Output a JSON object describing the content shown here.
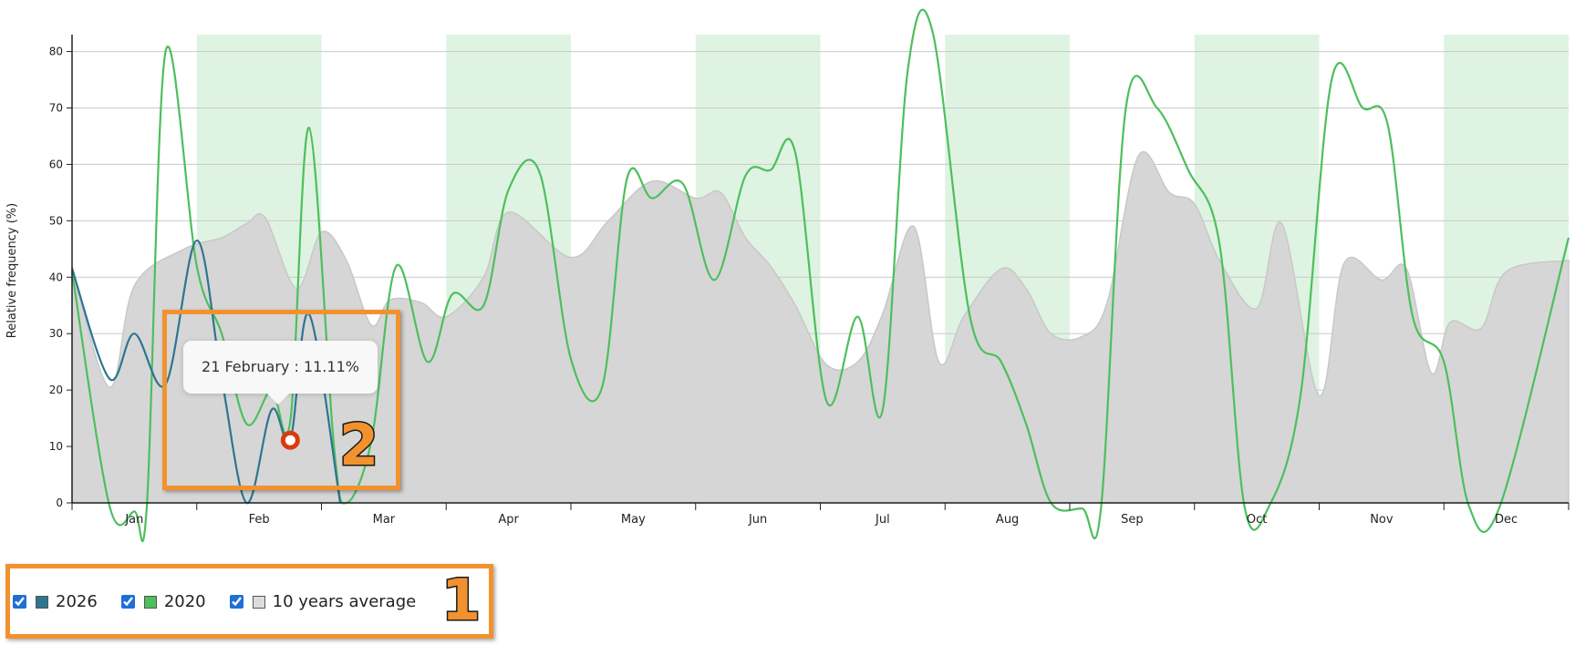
{
  "chart_data": {
    "type": "line",
    "ylabel": "Relative frequency (%)",
    "ylim": [
      0,
      83
    ],
    "yticks": [
      0,
      10,
      20,
      30,
      40,
      50,
      60,
      70,
      80
    ],
    "months": [
      "Jan",
      "Feb",
      "Mar",
      "Apr",
      "May",
      "Jun",
      "Jul",
      "Aug",
      "Sep",
      "Oct",
      "Nov",
      "Dec"
    ],
    "x_domain": [
      0,
      12
    ],
    "grid": "horizontal",
    "shaded_months": [
      "Feb",
      "Apr",
      "Jun",
      "Aug",
      "Oct",
      "Dec"
    ],
    "series": [
      {
        "name": "10 years average",
        "style": "area",
        "color": "#d6d6d6",
        "stroke": "#c8c8c8",
        "points": [
          [
            0.0,
            42
          ],
          [
            0.3,
            20.5
          ],
          [
            0.5,
            38.5
          ],
          [
            0.9,
            45
          ],
          [
            1.2,
            47
          ],
          [
            1.4,
            49.5
          ],
          [
            1.55,
            50.5
          ],
          [
            1.8,
            38
          ],
          [
            2.0,
            48
          ],
          [
            2.2,
            43
          ],
          [
            2.4,
            31.5
          ],
          [
            2.55,
            36
          ],
          [
            2.8,
            35.5
          ],
          [
            3.0,
            33
          ],
          [
            3.3,
            40
          ],
          [
            3.5,
            51.5
          ],
          [
            4.0,
            43.5
          ],
          [
            4.3,
            50
          ],
          [
            4.65,
            57
          ],
          [
            5.0,
            54
          ],
          [
            5.2,
            55
          ],
          [
            5.4,
            47
          ],
          [
            5.6,
            42
          ],
          [
            5.8,
            35
          ],
          [
            6.05,
            24.5
          ],
          [
            6.3,
            25
          ],
          [
            6.5,
            33.5
          ],
          [
            6.75,
            49
          ],
          [
            6.95,
            25
          ],
          [
            7.15,
            33
          ],
          [
            7.45,
            41.5
          ],
          [
            7.65,
            38
          ],
          [
            7.85,
            30
          ],
          [
            8.1,
            29.5
          ],
          [
            8.3,
            35.5
          ],
          [
            8.55,
            61.5
          ],
          [
            8.8,
            55
          ],
          [
            9.0,
            53
          ],
          [
            9.2,
            43
          ],
          [
            9.5,
            34.5
          ],
          [
            9.7,
            49.5
          ],
          [
            10.0,
            19
          ],
          [
            10.2,
            42.5
          ],
          [
            10.5,
            39.5
          ],
          [
            10.7,
            41.5
          ],
          [
            10.9,
            23
          ],
          [
            11.05,
            32
          ],
          [
            11.3,
            31
          ],
          [
            11.5,
            41
          ],
          [
            12.0,
            43
          ]
        ]
      },
      {
        "name": "2020",
        "style": "line",
        "color": "#4dbf5c",
        "points": [
          [
            0.0,
            41
          ],
          [
            0.3,
            -0.5
          ],
          [
            0.5,
            -1.5
          ],
          [
            0.6,
            -0.5
          ],
          [
            0.75,
            80
          ],
          [
            1.0,
            42
          ],
          [
            1.2,
            30
          ],
          [
            1.4,
            14
          ],
          [
            1.6,
            20
          ],
          [
            1.75,
            14.5
          ],
          [
            1.9,
            66.5
          ],
          [
            2.1,
            10
          ],
          [
            2.2,
            0
          ],
          [
            2.4,
            11
          ],
          [
            2.6,
            42
          ],
          [
            2.85,
            25
          ],
          [
            3.05,
            37
          ],
          [
            3.3,
            35
          ],
          [
            3.5,
            55.5
          ],
          [
            3.75,
            58.5
          ],
          [
            4.0,
            25.5
          ],
          [
            4.25,
            20.5
          ],
          [
            4.45,
            57.5
          ],
          [
            4.65,
            54
          ],
          [
            4.9,
            56.5
          ],
          [
            5.15,
            39.5
          ],
          [
            5.4,
            58
          ],
          [
            5.6,
            59
          ],
          [
            5.8,
            62
          ],
          [
            6.05,
            18
          ],
          [
            6.3,
            33
          ],
          [
            6.5,
            16.5
          ],
          [
            6.7,
            76.5
          ],
          [
            6.9,
            83.5
          ],
          [
            7.2,
            33
          ],
          [
            7.45,
            25
          ],
          [
            7.65,
            14
          ],
          [
            7.85,
            0
          ],
          [
            8.1,
            -1
          ],
          [
            8.25,
            -1
          ],
          [
            8.45,
            70
          ],
          [
            8.7,
            70
          ],
          [
            8.95,
            59
          ],
          [
            9.2,
            46
          ],
          [
            9.4,
            -0.5
          ],
          [
            9.6,
            -0.5
          ],
          [
            9.85,
            19
          ],
          [
            10.1,
            75
          ],
          [
            10.35,
            70
          ],
          [
            10.55,
            67
          ],
          [
            10.75,
            33
          ],
          [
            11.0,
            25
          ],
          [
            11.2,
            -0.5
          ],
          [
            11.45,
            -0.5
          ],
          [
            12.0,
            47
          ]
        ]
      },
      {
        "name": "2026",
        "style": "line",
        "color": "#2e7590",
        "points": [
          [
            0.0,
            41.5
          ],
          [
            0.3,
            22
          ],
          [
            0.5,
            30
          ],
          [
            0.75,
            21
          ],
          [
            1.0,
            46.5
          ],
          [
            1.2,
            22
          ],
          [
            1.4,
            0
          ],
          [
            1.6,
            16.5
          ],
          [
            1.75,
            11.11
          ],
          [
            1.9,
            33.5
          ],
          [
            2.15,
            0
          ]
        ]
      }
    ],
    "highlight": {
      "series": "2026",
      "x": 1.75,
      "y": 11.11,
      "color": "#d93a0f"
    },
    "tooltip": "21 February : 11.11%"
  },
  "legend": [
    {
      "label": "2026",
      "color": "#2e7590",
      "checked": true
    },
    {
      "label": "2020",
      "color": "#4dbf5c",
      "checked": true
    },
    {
      "label": "10 years average",
      "color": "#dcdcdc",
      "checked": true
    }
  ],
  "annotations": {
    "badge1": "1",
    "badge2": "2"
  }
}
